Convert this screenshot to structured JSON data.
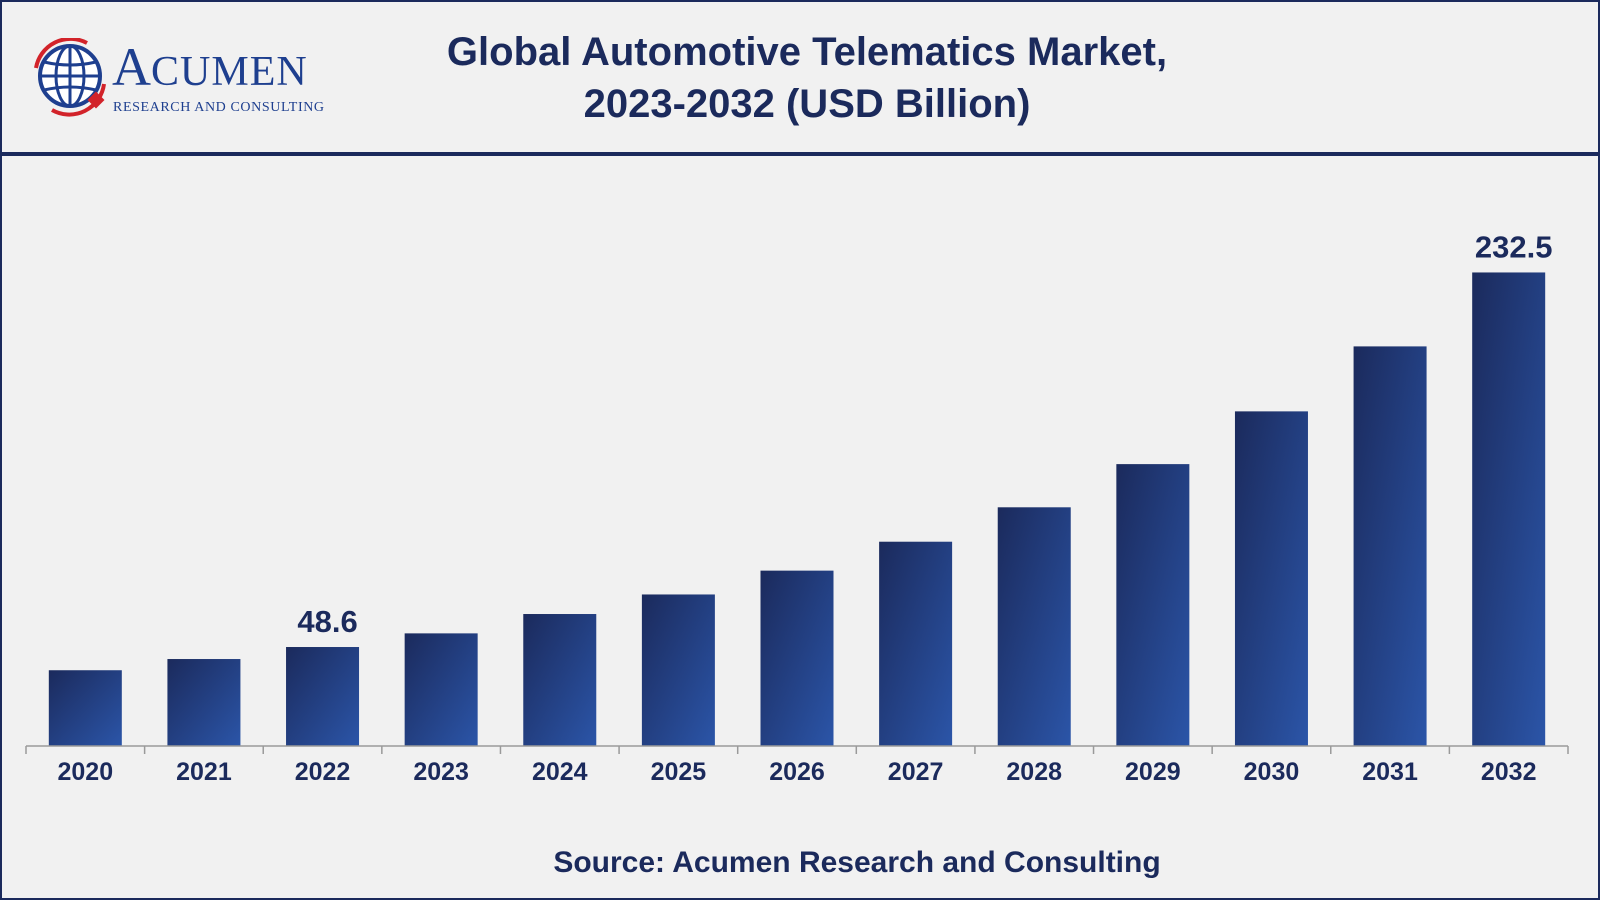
{
  "header": {
    "title_line1": "Global Automotive Telematics Market,",
    "title_line2": "2023-2032 (USD Billion)"
  },
  "logo": {
    "word_initial": "A",
    "word_rest": "CUMEN",
    "subtitle": "RESEARCH AND CONSULTING",
    "icon": "globe-icon"
  },
  "colors": {
    "bar_dark": "#1b2a5c",
    "bar_light": "#2b55a8",
    "text": "#1b2a5c",
    "background": "#f1f1f1"
  },
  "footer": {
    "source": "Source: Acumen Research and Consulting"
  },
  "chart_data": {
    "type": "bar",
    "title": "Global Automotive Telematics Market, 2023-2032 (USD Billion)",
    "categories": [
      "2020",
      "2021",
      "2022",
      "2023",
      "2024",
      "2025",
      "2026",
      "2027",
      "2028",
      "2029",
      "2030",
      "2031",
      "2032"
    ],
    "values": [
      37.2,
      42.7,
      48.6,
      55.3,
      64.8,
      74.4,
      86.1,
      100.3,
      117.2,
      138.4,
      164.3,
      196.2,
      232.5
    ],
    "data_labels": {
      "2022": "48.6",
      "2032": "232.5"
    },
    "xlabel": "",
    "ylabel": "",
    "ylim": [
      0,
      245
    ],
    "grid": false,
    "legend": "none"
  }
}
